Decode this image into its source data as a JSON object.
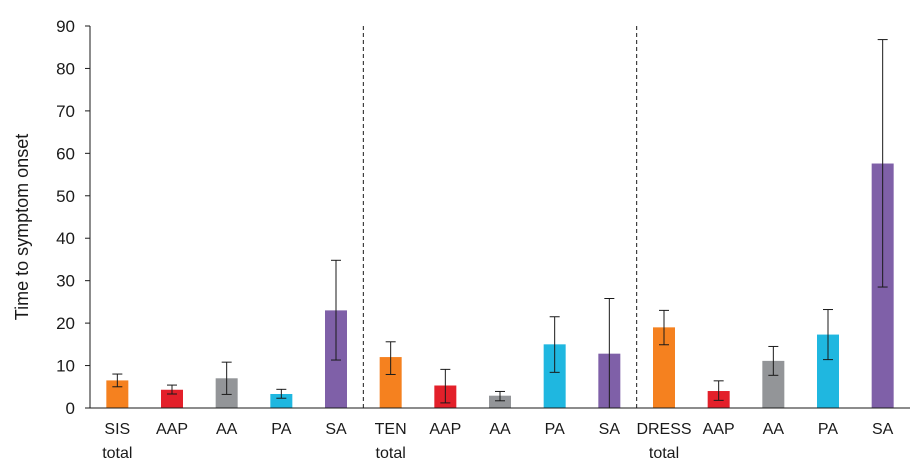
{
  "chart_data": {
    "type": "bar",
    "ylabel": "Time to symptom onset",
    "ylim": [
      0,
      90
    ],
    "yticks": [
      0,
      10,
      20,
      30,
      40,
      50,
      60,
      70,
      80,
      90
    ],
    "grid": false,
    "legend": "none",
    "groups": [
      {
        "label_line1": "SIS",
        "label_line2": "total",
        "bars": [
          {
            "category": "SIS total",
            "value": 6.5,
            "err_low": 5.0,
            "err_high": 8.0,
            "color": "#f5811f"
          },
          {
            "category": "AAP",
            "value": 4.3,
            "err_low": 3.3,
            "err_high": 5.4,
            "color": "#e3202a"
          },
          {
            "category": "AA",
            "value": 7.0,
            "err_low": 3.2,
            "err_high": 10.8,
            "color": "#939598"
          },
          {
            "category": "PA",
            "value": 3.3,
            "err_low": 2.3,
            "err_high": 4.4,
            "color": "#1fb7e0"
          },
          {
            "category": "SA",
            "value": 23.0,
            "err_low": 11.3,
            "err_high": 34.8,
            "color": "#7f60a8"
          }
        ]
      },
      {
        "label_line1": "TEN",
        "label_line2": "total",
        "bars": [
          {
            "category": "TEN total",
            "value": 12.0,
            "err_low": 7.9,
            "err_high": 15.6,
            "color": "#f5811f"
          },
          {
            "category": "AAP",
            "value": 5.3,
            "err_low": 1.2,
            "err_high": 9.1,
            "color": "#e3202a"
          },
          {
            "category": "AA",
            "value": 2.9,
            "err_low": 1.7,
            "err_high": 3.9,
            "color": "#939598"
          },
          {
            "category": "PA",
            "value": 15.0,
            "err_low": 8.4,
            "err_high": 21.5,
            "color": "#1fb7e0"
          },
          {
            "category": "SA",
            "value": 12.8,
            "err_low": 0.0,
            "err_high": 25.8,
            "color": "#7f60a8"
          }
        ]
      },
      {
        "label_line1": "DRESS",
        "label_line2": "total",
        "bars": [
          {
            "category": "DRESS total",
            "value": 19.0,
            "err_low": 14.9,
            "err_high": 23.0,
            "color": "#f5811f"
          },
          {
            "category": "AAP",
            "value": 4.0,
            "err_low": 1.8,
            "err_high": 6.4,
            "color": "#e3202a"
          },
          {
            "category": "AA",
            "value": 11.1,
            "err_low": 7.7,
            "err_high": 14.5,
            "color": "#939598"
          },
          {
            "category": "PA",
            "value": 17.3,
            "err_low": 11.4,
            "err_high": 23.2,
            "color": "#1fb7e0"
          },
          {
            "category": "SA",
            "value": 57.6,
            "err_low": 28.5,
            "err_high": 86.8,
            "color": "#7f60a8"
          }
        ]
      }
    ]
  }
}
